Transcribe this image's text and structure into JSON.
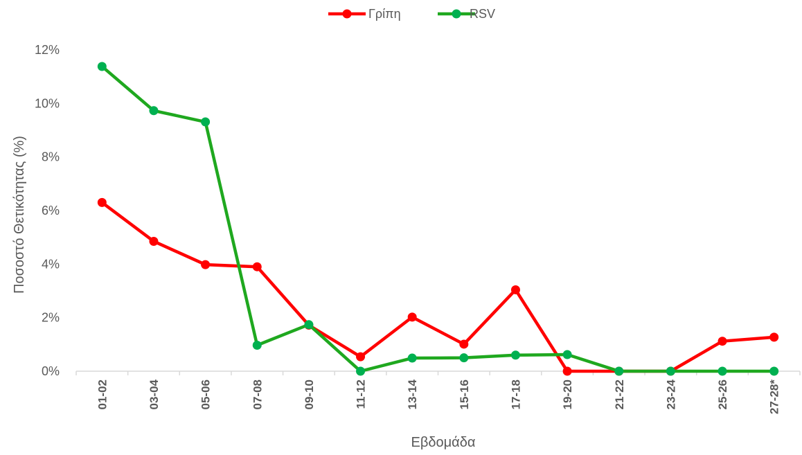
{
  "chart_data": {
    "type": "line",
    "title": "",
    "xlabel": "Εβδομάδα",
    "ylabel": "Ποσοστό Θετικότητας (%)",
    "categories": [
      "01-02",
      "03-04",
      "05-06",
      "07-08",
      "09-10",
      "11-12",
      "13-14",
      "15-16",
      "17-18",
      "19-20",
      "21-22",
      "23-24",
      "25-26",
      "27-28*"
    ],
    "series": [
      {
        "name": "Γρίπη",
        "color": "#ff0000",
        "values": [
          6.3,
          4.85,
          3.98,
          3.9,
          1.72,
          0.54,
          2.02,
          1.01,
          3.04,
          0.0,
          0.0,
          0.0,
          1.12,
          1.27
        ]
      },
      {
        "name": "RSV",
        "color": "#1fa81f",
        "marker_color": "#00b050",
        "values": [
          11.38,
          9.73,
          9.31,
          0.97,
          1.74,
          0.0,
          0.49,
          0.5,
          0.6,
          0.62,
          0.0,
          0.0,
          0.0,
          0.0
        ]
      }
    ],
    "ylim": [
      0,
      12
    ],
    "yticks": [
      0,
      2,
      4,
      6,
      8,
      10,
      12
    ],
    "ytick_labels": [
      "0%",
      "2%",
      "4%",
      "6%",
      "8%",
      "10%",
      "12%"
    ],
    "grid": false,
    "legend_position": "top-center"
  }
}
